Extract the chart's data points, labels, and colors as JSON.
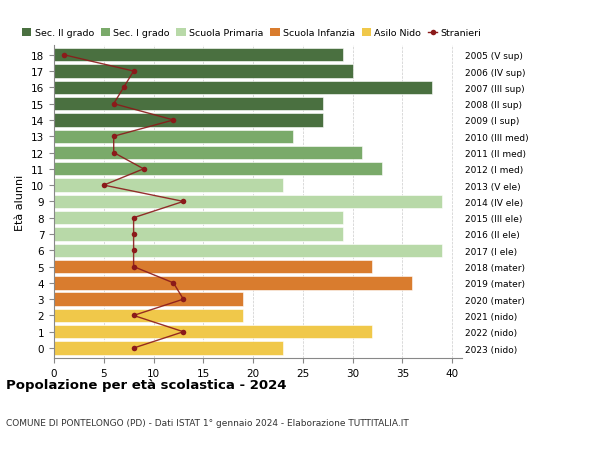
{
  "ages": [
    18,
    17,
    16,
    15,
    14,
    13,
    12,
    11,
    10,
    9,
    8,
    7,
    6,
    5,
    4,
    3,
    2,
    1,
    0
  ],
  "right_labels": [
    "2005 (V sup)",
    "2006 (IV sup)",
    "2007 (III sup)",
    "2008 (II sup)",
    "2009 (I sup)",
    "2010 (III med)",
    "2011 (II med)",
    "2012 (I med)",
    "2013 (V ele)",
    "2014 (IV ele)",
    "2015 (III ele)",
    "2016 (II ele)",
    "2017 (I ele)",
    "2018 (mater)",
    "2019 (mater)",
    "2020 (mater)",
    "2021 (nido)",
    "2022 (nido)",
    "2023 (nido)"
  ],
  "bar_values": [
    29,
    30,
    38,
    27,
    27,
    24,
    31,
    33,
    23,
    39,
    29,
    29,
    39,
    32,
    36,
    19,
    19,
    32,
    23
  ],
  "bar_colors": [
    "#4a7040",
    "#4a7040",
    "#4a7040",
    "#4a7040",
    "#4a7040",
    "#7aaa6a",
    "#7aaa6a",
    "#7aaa6a",
    "#b8d9a8",
    "#b8d9a8",
    "#b8d9a8",
    "#b8d9a8",
    "#b8d9a8",
    "#d97c2e",
    "#d97c2e",
    "#d97c2e",
    "#f0c84a",
    "#f0c84a",
    "#f0c84a"
  ],
  "stranieri_values": [
    1,
    8,
    7,
    6,
    12,
    6,
    6,
    9,
    5,
    13,
    8,
    8,
    8,
    8,
    12,
    13,
    8,
    13,
    8
  ],
  "legend_labels": [
    "Sec. II grado",
    "Sec. I grado",
    "Scuola Primaria",
    "Scuola Infanzia",
    "Asilo Nido",
    "Stranieri"
  ],
  "legend_colors": [
    "#4a7040",
    "#7aaa6a",
    "#b8d9a8",
    "#d97c2e",
    "#f0c84a",
    "#8b1a1a"
  ],
  "ylabel": "Età alunni",
  "title": "Popolazione per età scolastica - 2024",
  "subtitle": "COMUNE DI PONTELONGO (PD) - Dati ISTAT 1° gennaio 2024 - Elaborazione TUTTITALIA.IT",
  "xlim": [
    0,
    41
  ],
  "grid_color": "#cccccc",
  "stranieri_line_color": "#8b1a1a",
  "stranieri_dot_color": "#8b1a1a"
}
